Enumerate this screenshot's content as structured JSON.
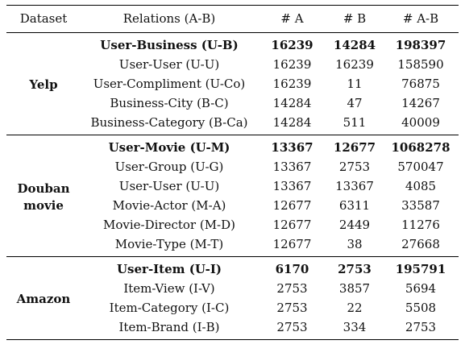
{
  "table": {
    "headers": [
      "Dataset",
      "Relations (A-B)",
      "# A",
      "# B",
      "# A-B"
    ],
    "groups": [
      {
        "dataset": "Yelp",
        "rows": [
          {
            "relation": "User-Business (U-B)",
            "a": "16239",
            "b": "14284",
            "ab": "198397",
            "primary": true
          },
          {
            "relation": "User-User (U-U)",
            "a": "16239",
            "b": "16239",
            "ab": "158590"
          },
          {
            "relation": "User-Compliment (U-Co)",
            "a": "16239",
            "b": "11",
            "ab": "76875"
          },
          {
            "relation": "Business-City (B-C)",
            "a": "14284",
            "b": "47",
            "ab": "14267"
          },
          {
            "relation": "Business-Category (B-Ca)",
            "a": "14284",
            "b": "511",
            "ab": "40009"
          }
        ]
      },
      {
        "dataset": "Douban movie",
        "rows": [
          {
            "relation": "User-Movie (U-M)",
            "a": "13367",
            "b": "12677",
            "ab": "1068278",
            "primary": true
          },
          {
            "relation": "User-Group (U-G)",
            "a": "13367",
            "b": "2753",
            "ab": "570047"
          },
          {
            "relation": "User-User (U-U)",
            "a": "13367",
            "b": "13367",
            "ab": "4085"
          },
          {
            "relation": "Movie-Actor (M-A)",
            "a": "12677",
            "b": "6311",
            "ab": "33587"
          },
          {
            "relation": "Movie-Director (M-D)",
            "a": "12677",
            "b": "2449",
            "ab": "11276"
          },
          {
            "relation": "Movie-Type (M-T)",
            "a": "12677",
            "b": "38",
            "ab": "27668"
          }
        ]
      },
      {
        "dataset": "Amazon",
        "rows": [
          {
            "relation": "User-Item (U-I)",
            "a": "6170",
            "b": "2753",
            "ab": "195791",
            "primary": true
          },
          {
            "relation": "Item-View (I-V)",
            "a": "2753",
            "b": "3857",
            "ab": "5694"
          },
          {
            "relation": "Item-Category (I-C)",
            "a": "2753",
            "b": "22",
            "ab": "5508"
          },
          {
            "relation": "Item-Brand (I-B)",
            "a": "2753",
            "b": "334",
            "ab": "2753"
          }
        ]
      }
    ]
  }
}
